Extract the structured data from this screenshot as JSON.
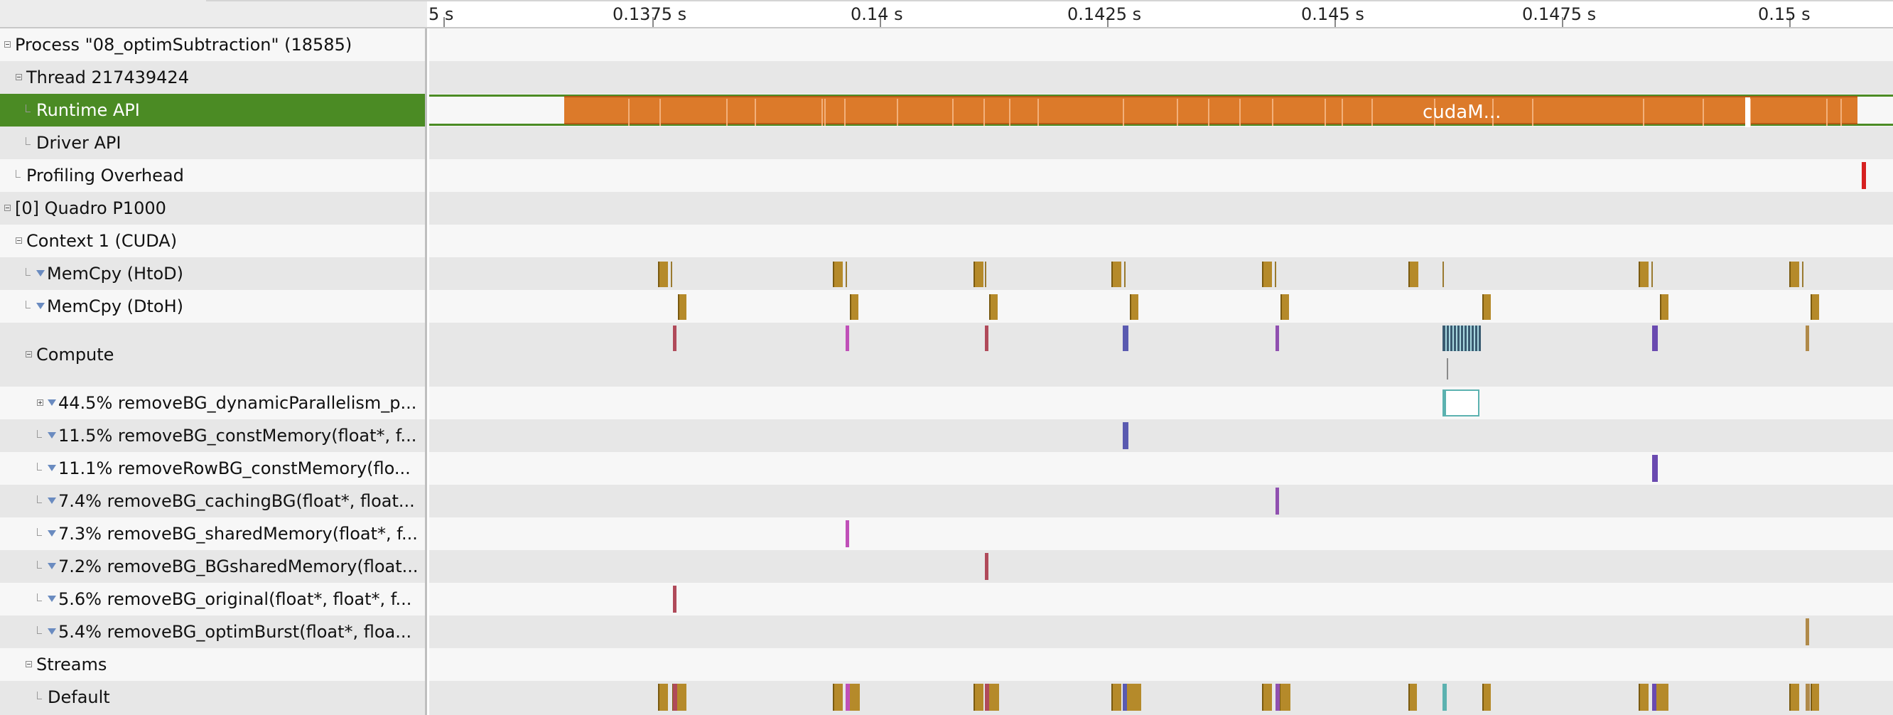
{
  "ruler": {
    "ticks": [
      {
        "label": "5 s"
      },
      {
        "label": "0.1375 s"
      },
      {
        "label": "0.14 s"
      },
      {
        "label": "0.1425 s"
      },
      {
        "label": "0.145 s"
      },
      {
        "label": "0.1475 s"
      },
      {
        "label": "0.15 s"
      }
    ]
  },
  "rows": [
    {
      "name": "process-row",
      "label": "Process \"08_optimSubtraction\" (18585)",
      "indent": "exp-0"
    },
    {
      "name": "thread-row",
      "label": "Thread 217439424",
      "indent": "exp-1"
    },
    {
      "name": "runtime-api-row",
      "label": "Runtime API",
      "indent": "leaf-2"
    },
    {
      "name": "driver-api-row",
      "label": "Driver API",
      "indent": "leaf-2"
    },
    {
      "name": "profiling-overhead-row",
      "label": "Profiling Overhead",
      "indent": "leaf-1"
    },
    {
      "name": "device-row",
      "label": "[0] Quadro P1000",
      "indent": "exp-0"
    },
    {
      "name": "context-row",
      "label": "Context 1 (CUDA)",
      "indent": "exp-1"
    },
    {
      "name": "memcpy-htod-row",
      "label": "MemCpy (HtoD)",
      "indent": "leaf-f-2"
    },
    {
      "name": "memcpy-dtoh-row",
      "label": "MemCpy (DtoH)",
      "indent": "leaf-f-2"
    },
    {
      "name": "compute-row",
      "label": "Compute",
      "indent": "exp-2"
    },
    {
      "name": "kernel-row-dynamic-parallelism",
      "label": "44.5% removeBG_dynamicParallelism_p...",
      "indent": "plus-f-3"
    },
    {
      "name": "kernel-row-const-memory",
      "label": "11.5% removeBG_constMemory(float*, f...",
      "indent": "leaf-f-3"
    },
    {
      "name": "kernel-row-row-const-memory",
      "label": "11.1% removeRowBG_constMemory(flo...",
      "indent": "leaf-f-3"
    },
    {
      "name": "kernel-row-caching-bg",
      "label": "7.4% removeBG_cachingBG(float*, float...",
      "indent": "leaf-f-3"
    },
    {
      "name": "kernel-row-shared-memory",
      "label": "7.3% removeBG_sharedMemory(float*, f...",
      "indent": "leaf-f-3"
    },
    {
      "name": "kernel-row-bg-shared-memory",
      "label": "7.2% removeBG_BGsharedMemory(float...",
      "indent": "leaf-f-3"
    },
    {
      "name": "kernel-row-original",
      "label": "5.6% removeBG_original(float*, float*, f...",
      "indent": "leaf-f-3"
    },
    {
      "name": "kernel-row-optim-burst",
      "label": "5.4% removeBG_optimBurst(float*, floa...",
      "indent": "leaf-f-3"
    },
    {
      "name": "streams-row",
      "label": "Streams",
      "indent": "exp-2"
    },
    {
      "name": "default-stream-row",
      "label": "Default",
      "indent": "leaf-3"
    }
  ],
  "runtime_api": {
    "label": "cudaM..."
  },
  "colors": {
    "selection": "#4b8b24",
    "runtime_api": "#dc7a2a",
    "memcpy": "#b58a2a",
    "profiling_overhead": "#d62020",
    "kernel_original": "#b04a5a",
    "kernel_shared_memory": "#c050b8",
    "kernel_bg_shared_memory": "#b04a5a",
    "kernel_const_memory": "#5a5ab0",
    "kernel_caching_bg": "#9050b0",
    "kernel_dynamic_parallelism": "#5cb2b0",
    "kernel_row_const_memory": "#6a4ab0",
    "kernel_optim_burst": "#b08a4a"
  }
}
